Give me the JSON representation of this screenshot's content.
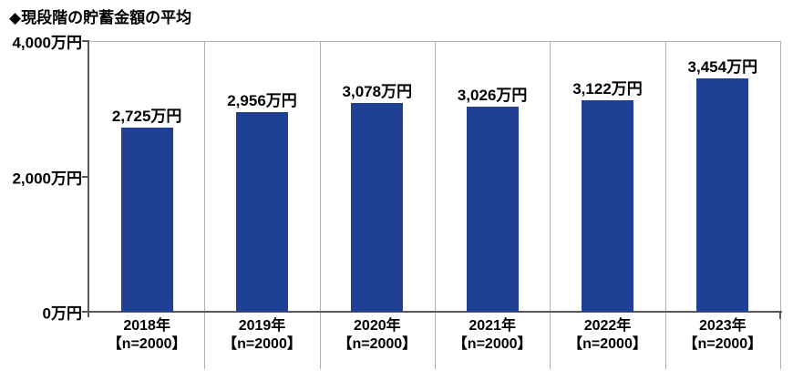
{
  "chart_data": {
    "type": "bar",
    "title": "◆現段階の貯蓄金額の平均",
    "unit": "万円",
    "categories": [
      "2018年",
      "2019年",
      "2020年",
      "2021年",
      "2022年",
      "2023年"
    ],
    "category_sublabels": [
      "【n=2000】",
      "【n=2000】",
      "【n=2000】",
      "【n=2000】",
      "【n=2000】",
      "【n=2000】"
    ],
    "values": [
      2725,
      2956,
      3078,
      3026,
      3122,
      3454
    ],
    "value_labels": [
      "2,725万円",
      "2,956万円",
      "3,078万円",
      "3,026万円",
      "3,122万円",
      "3,454万円"
    ],
    "ylim": [
      0,
      4000
    ],
    "yticks": [
      {
        "value": 0,
        "label": "0万円"
      },
      {
        "value": 2000,
        "label": "2,000万円"
      },
      {
        "value": 4000,
        "label": "4,000万円"
      }
    ],
    "xlabel": "",
    "ylabel": "",
    "grid": "column-separators-on",
    "legend": "none",
    "colors": {
      "bar": "#1f4094",
      "axis": "#595959",
      "separator": "#b3b3b3",
      "text": "#000000",
      "background": "#ffffff"
    }
  }
}
